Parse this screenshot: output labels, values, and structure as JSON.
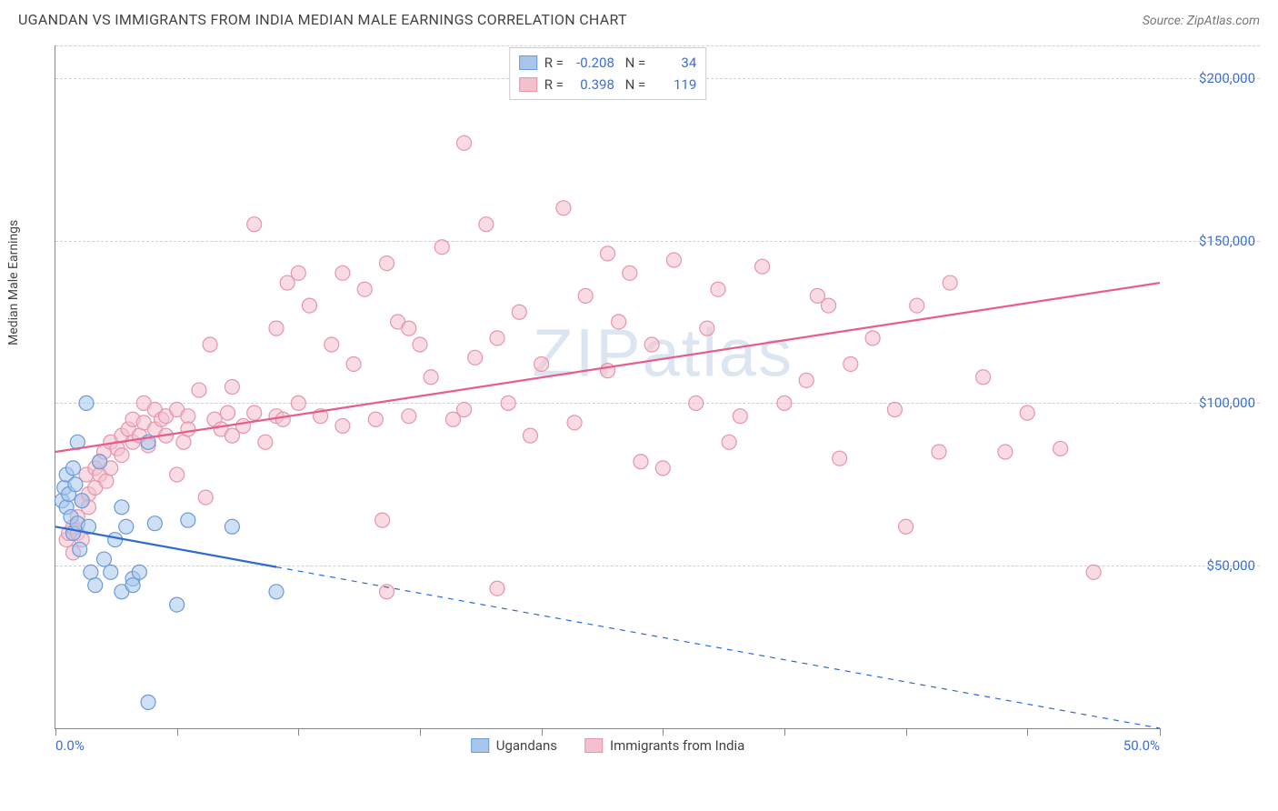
{
  "header": {
    "title": "UGANDAN VS IMMIGRANTS FROM INDIA MEDIAN MALE EARNINGS CORRELATION CHART",
    "source": "Source: ZipAtlas.com"
  },
  "watermark": "ZIPatlas",
  "chart": {
    "type": "scatter",
    "y_axis_label": "Median Male Earnings",
    "background_color": "#ffffff",
    "grid_color": "#d0d0d0",
    "axis_color": "#888888",
    "xlim": [
      0,
      50
    ],
    "ylim": [
      0,
      210000
    ],
    "x_ticks": [
      0,
      5.5,
      11,
      16.5,
      22,
      27.5,
      33,
      38.5,
      44,
      50
    ],
    "x_tick_labels_shown": {
      "0": "0.0%",
      "50": "50.0%"
    },
    "y_gridlines": [
      50000,
      100000,
      150000,
      200000
    ],
    "y_tick_labels": [
      "$50,000",
      "$100,000",
      "$150,000",
      "$200,000"
    ],
    "tick_label_color": "#3b6fd6",
    "tick_label_fontsize": 15,
    "axis_label_fontsize": 14,
    "marker_radius": 8,
    "marker_opacity": 0.55,
    "line_width": 2.2,
    "series": [
      {
        "name": "Ugandans",
        "fill_color": "#a8c6ec",
        "stroke_color": "#6b9bd8",
        "line_color": "#2e6bd0",
        "R": "-0.208",
        "N": "34",
        "trend": {
          "x1": 0,
          "y1": 62000,
          "x2": 50,
          "y2": 0,
          "solid_until_x": 10
        },
        "points": [
          [
            0.3,
            70000
          ],
          [
            0.4,
            74000
          ],
          [
            0.5,
            78000
          ],
          [
            0.5,
            68000
          ],
          [
            0.6,
            72000
          ],
          [
            0.7,
            65000
          ],
          [
            0.8,
            80000
          ],
          [
            0.8,
            60000
          ],
          [
            0.9,
            75000
          ],
          [
            1.0,
            63000
          ],
          [
            1.0,
            88000
          ],
          [
            1.1,
            55000
          ],
          [
            1.2,
            70000
          ],
          [
            1.4,
            100000
          ],
          [
            1.5,
            62000
          ],
          [
            1.6,
            48000
          ],
          [
            1.8,
            44000
          ],
          [
            2.0,
            82000
          ],
          [
            2.2,
            52000
          ],
          [
            2.5,
            48000
          ],
          [
            2.7,
            58000
          ],
          [
            3.0,
            42000
          ],
          [
            3.2,
            62000
          ],
          [
            3.5,
            46000
          ],
          [
            3.5,
            44000
          ],
          [
            3.8,
            48000
          ],
          [
            4.2,
            8000
          ],
          [
            4.2,
            88000
          ],
          [
            4.5,
            63000
          ],
          [
            5.5,
            38000
          ],
          [
            6.0,
            64000
          ],
          [
            8.0,
            62000
          ],
          [
            10.0,
            42000
          ],
          [
            3.0,
            68000
          ]
        ]
      },
      {
        "name": "Immigrants from India",
        "fill_color": "#f4c0cc",
        "stroke_color": "#e695aa",
        "line_color": "#e75d8a",
        "R": "0.398",
        "N": "119",
        "trend": {
          "x1": 0,
          "y1": 85000,
          "x2": 50,
          "y2": 137000,
          "solid_until_x": 50
        },
        "points": [
          [
            0.5,
            58000
          ],
          [
            0.6,
            60000
          ],
          [
            0.8,
            62000
          ],
          [
            0.8,
            54000
          ],
          [
            1.0,
            65000
          ],
          [
            1.0,
            60000
          ],
          [
            1.2,
            70000
          ],
          [
            1.2,
            58000
          ],
          [
            1.4,
            78000
          ],
          [
            1.5,
            72000
          ],
          [
            1.5,
            68000
          ],
          [
            1.8,
            80000
          ],
          [
            1.8,
            74000
          ],
          [
            2.0,
            82000
          ],
          [
            2.0,
            78000
          ],
          [
            2.2,
            85000
          ],
          [
            2.3,
            76000
          ],
          [
            2.5,
            88000
          ],
          [
            2.5,
            80000
          ],
          [
            2.8,
            86000
          ],
          [
            3.0,
            90000
          ],
          [
            3.0,
            84000
          ],
          [
            3.3,
            92000
          ],
          [
            3.5,
            88000
          ],
          [
            3.5,
            95000
          ],
          [
            3.8,
            90000
          ],
          [
            4.0,
            94000
          ],
          [
            4.0,
            100000
          ],
          [
            4.2,
            87000
          ],
          [
            4.5,
            98000
          ],
          [
            4.5,
            92000
          ],
          [
            4.8,
            95000
          ],
          [
            5.0,
            96000
          ],
          [
            5.0,
            90000
          ],
          [
            5.5,
            78000
          ],
          [
            5.5,
            98000
          ],
          [
            5.8,
            88000
          ],
          [
            6.0,
            96000
          ],
          [
            6.0,
            92000
          ],
          [
            6.5,
            104000
          ],
          [
            6.8,
            71000
          ],
          [
            7.0,
            118000
          ],
          [
            7.2,
            95000
          ],
          [
            7.5,
            92000
          ],
          [
            7.8,
            97000
          ],
          [
            8.0,
            105000
          ],
          [
            8.0,
            90000
          ],
          [
            8.5,
            93000
          ],
          [
            9.0,
            155000
          ],
          [
            9.0,
            97000
          ],
          [
            9.5,
            88000
          ],
          [
            10.0,
            123000
          ],
          [
            10.0,
            96000
          ],
          [
            10.3,
            95000
          ],
          [
            10.5,
            137000
          ],
          [
            11.0,
            140000
          ],
          [
            11.0,
            100000
          ],
          [
            11.5,
            130000
          ],
          [
            12.0,
            96000
          ],
          [
            12.5,
            118000
          ],
          [
            13.0,
            140000
          ],
          [
            13.0,
            93000
          ],
          [
            13.5,
            112000
          ],
          [
            14.0,
            135000
          ],
          [
            14.5,
            95000
          ],
          [
            14.8,
            64000
          ],
          [
            15.0,
            143000
          ],
          [
            15.0,
            42000
          ],
          [
            15.5,
            125000
          ],
          [
            16.0,
            123000
          ],
          [
            16.0,
            96000
          ],
          [
            16.5,
            118000
          ],
          [
            17.0,
            108000
          ],
          [
            17.5,
            148000
          ],
          [
            18.0,
            95000
          ],
          [
            18.5,
            180000
          ],
          [
            18.5,
            98000
          ],
          [
            19.0,
            114000
          ],
          [
            19.5,
            155000
          ],
          [
            20.0,
            120000
          ],
          [
            20.0,
            43000
          ],
          [
            20.5,
            100000
          ],
          [
            21.0,
            128000
          ],
          [
            21.5,
            90000
          ],
          [
            22.0,
            112000
          ],
          [
            23.0,
            160000
          ],
          [
            23.5,
            94000
          ],
          [
            24.0,
            133000
          ],
          [
            25.0,
            110000
          ],
          [
            25.0,
            146000
          ],
          [
            25.5,
            125000
          ],
          [
            26.0,
            140000
          ],
          [
            26.5,
            82000
          ],
          [
            27.0,
            118000
          ],
          [
            27.5,
            80000
          ],
          [
            28.0,
            144000
          ],
          [
            29.0,
            100000
          ],
          [
            29.5,
            123000
          ],
          [
            30.0,
            135000
          ],
          [
            30.5,
            88000
          ],
          [
            31.0,
            96000
          ],
          [
            32.0,
            142000
          ],
          [
            33.0,
            100000
          ],
          [
            34.0,
            107000
          ],
          [
            34.5,
            133000
          ],
          [
            35.0,
            130000
          ],
          [
            35.5,
            83000
          ],
          [
            36.0,
            112000
          ],
          [
            37.0,
            120000
          ],
          [
            38.0,
            98000
          ],
          [
            38.5,
            62000
          ],
          [
            39.0,
            130000
          ],
          [
            40.0,
            85000
          ],
          [
            40.5,
            137000
          ],
          [
            42.0,
            108000
          ],
          [
            43.0,
            85000
          ],
          [
            44.0,
            97000
          ],
          [
            45.5,
            86000
          ],
          [
            47.0,
            48000
          ]
        ]
      }
    ]
  },
  "legend_bottom": [
    {
      "label": "Ugandans",
      "fill": "#a8c6ec",
      "stroke": "#6b9bd8"
    },
    {
      "label": "Immigrants from India",
      "fill": "#f4c0cc",
      "stroke": "#e695aa"
    }
  ]
}
